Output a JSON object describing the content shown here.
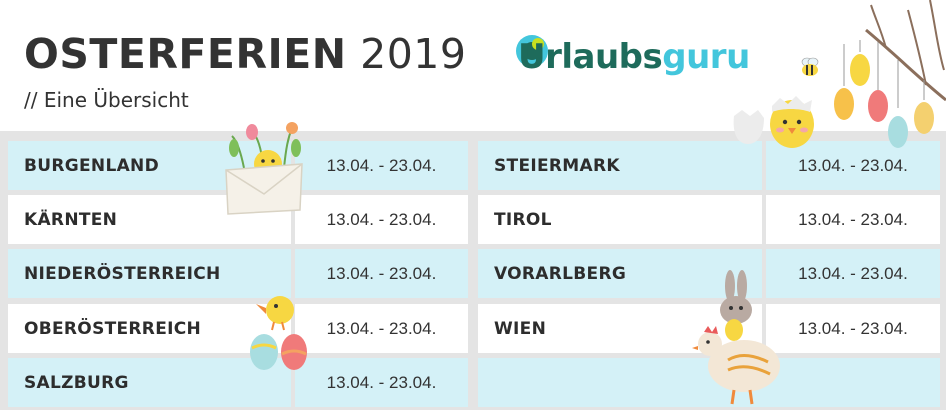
{
  "header": {
    "title_bold": "OSTERFERIEN",
    "title_year": "2019",
    "subtitle": "// Eine Übersicht"
  },
  "logo": {
    "text_part1": "Urlaubs",
    "text_part2": "guru",
    "colors": {
      "dark": "#1e6b5b",
      "light": "#43c6dc",
      "accent": "#c8e020"
    }
  },
  "colors": {
    "row_blue": "#d4f1f7",
    "row_white": "#ffffff",
    "grid": "#e4e4e4"
  },
  "left_rows": [
    {
      "name": "BURGENLAND",
      "dates": "13.04. - 23.04."
    },
    {
      "name": "KÄRNTEN",
      "dates": "13.04. - 23.04."
    },
    {
      "name": "NIEDERÖSTERREICH",
      "dates": "13.04. - 23.04."
    },
    {
      "name": "OBERÖSTERREICH",
      "dates": "13.04. - 23.04."
    },
    {
      "name": "SALZBURG",
      "dates": "13.04. - 23.04."
    }
  ],
  "right_rows": [
    {
      "name": "STEIERMARK",
      "dates": "13.04. - 23.04."
    },
    {
      "name": "TIROL",
      "dates": "13.04. - 23.04."
    },
    {
      "name": "VORARLBERG",
      "dates": "13.04. - 23.04."
    },
    {
      "name": "WIEN",
      "dates": "13.04. - 23.04."
    },
    {
      "name": "",
      "dates": ""
    }
  ]
}
